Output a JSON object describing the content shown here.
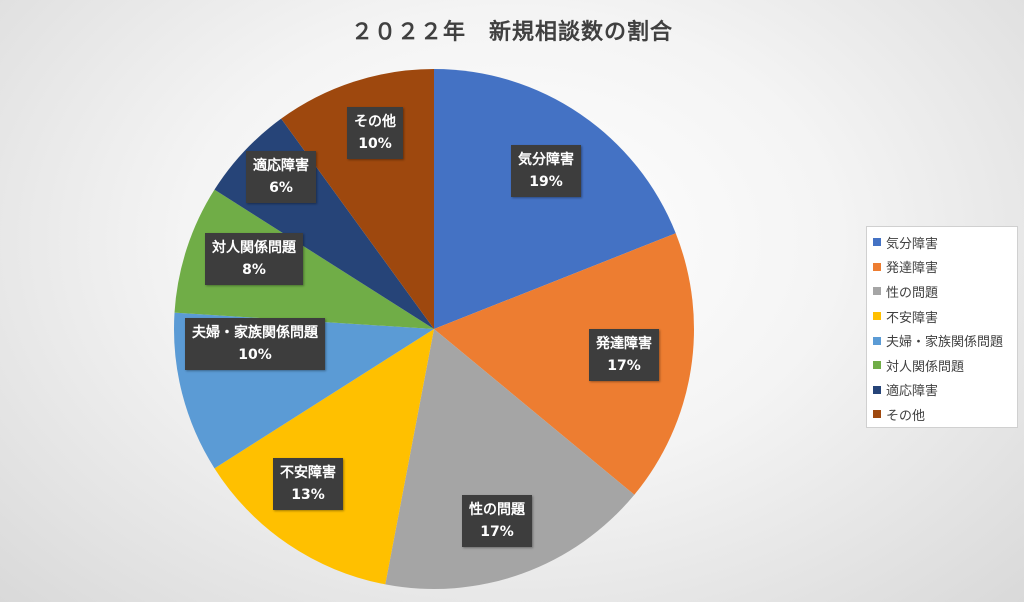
{
  "chart_data": {
    "type": "pie",
    "title": "２０２２年　新規相談数の割合",
    "categories": [
      "気分障害",
      "発達障害",
      "性の問題",
      "不安障害",
      "夫婦・家族関係問題",
      "対人関係問題",
      "適応障害",
      "その他"
    ],
    "values": [
      19,
      17,
      17,
      13,
      10,
      8,
      6,
      10
    ],
    "percent_labels": [
      "19%",
      "17%",
      "17%",
      "13%",
      "10%",
      "8%",
      "6%",
      "10%"
    ],
    "colors": [
      "#4472C4",
      "#ED7D31",
      "#A5A5A5",
      "#FFC000",
      "#5B9BD5",
      "#70AD47",
      "#264478",
      "#9E480E"
    ],
    "legend_position": "right",
    "start_angle": "12 o'clock",
    "direction": "clockwise"
  }
}
